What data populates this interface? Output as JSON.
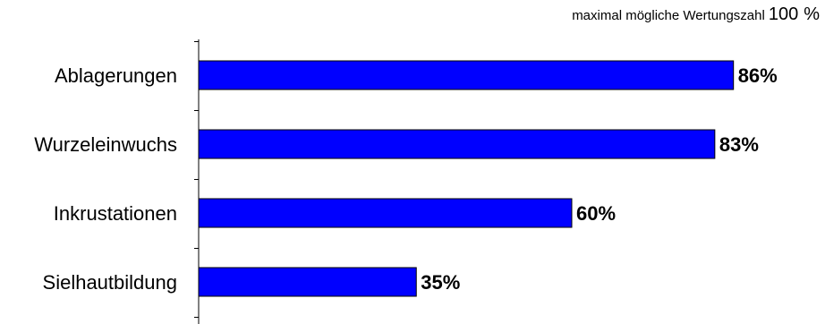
{
  "annotation": {
    "label": "maximal mögliche Wertungszahl",
    "value": "100",
    "unit": "%"
  },
  "colors": {
    "bar_fill": "#0000ff",
    "bar_stroke": "#000000",
    "axis": "#000000",
    "background": "#ffffff"
  },
  "chart_data": {
    "type": "bar",
    "orientation": "horizontal",
    "categories": [
      "Ablagerungen",
      "Wurzeleinwuchs",
      "Inkrustationen",
      "Sielhautbildung"
    ],
    "values": [
      86,
      83,
      60,
      35
    ],
    "value_labels": [
      "86%",
      "83%",
      "60%",
      "35%"
    ],
    "title": "",
    "xlabel": "",
    "ylabel": "",
    "xlim": [
      0,
      100
    ],
    "grid": false,
    "legend": "none"
  }
}
